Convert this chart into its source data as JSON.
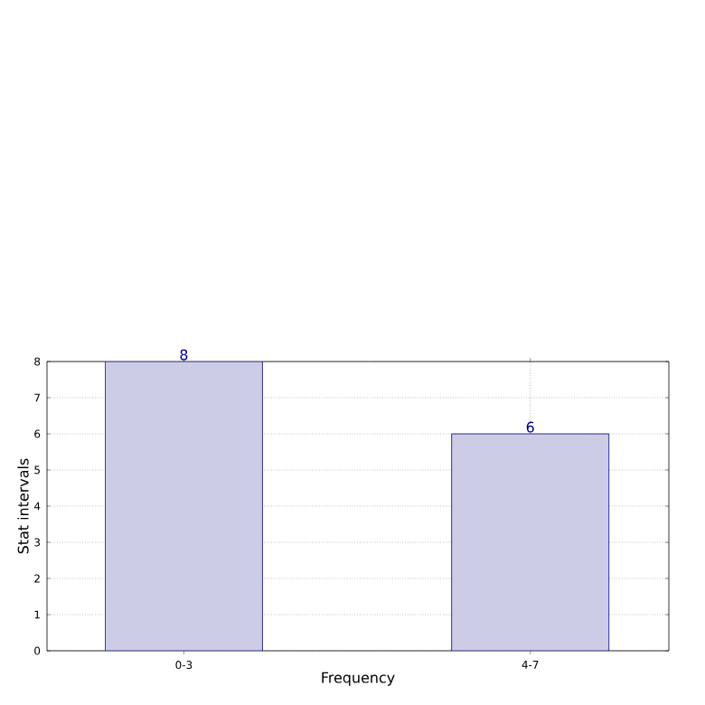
{
  "chart_data": {
    "type": "bar",
    "xlabel": "Frequency",
    "ylabel": "Stat intervals",
    "categories": [
      "0-3",
      "4-7"
    ],
    "values": [
      8,
      6
    ],
    "color": "#ccccE5",
    "ylim": [
      0,
      8
    ],
    "yticks": [
      0,
      1,
      2,
      3,
      4,
      5,
      6,
      7,
      8
    ],
    "grid": true,
    "data_labels": true
  }
}
